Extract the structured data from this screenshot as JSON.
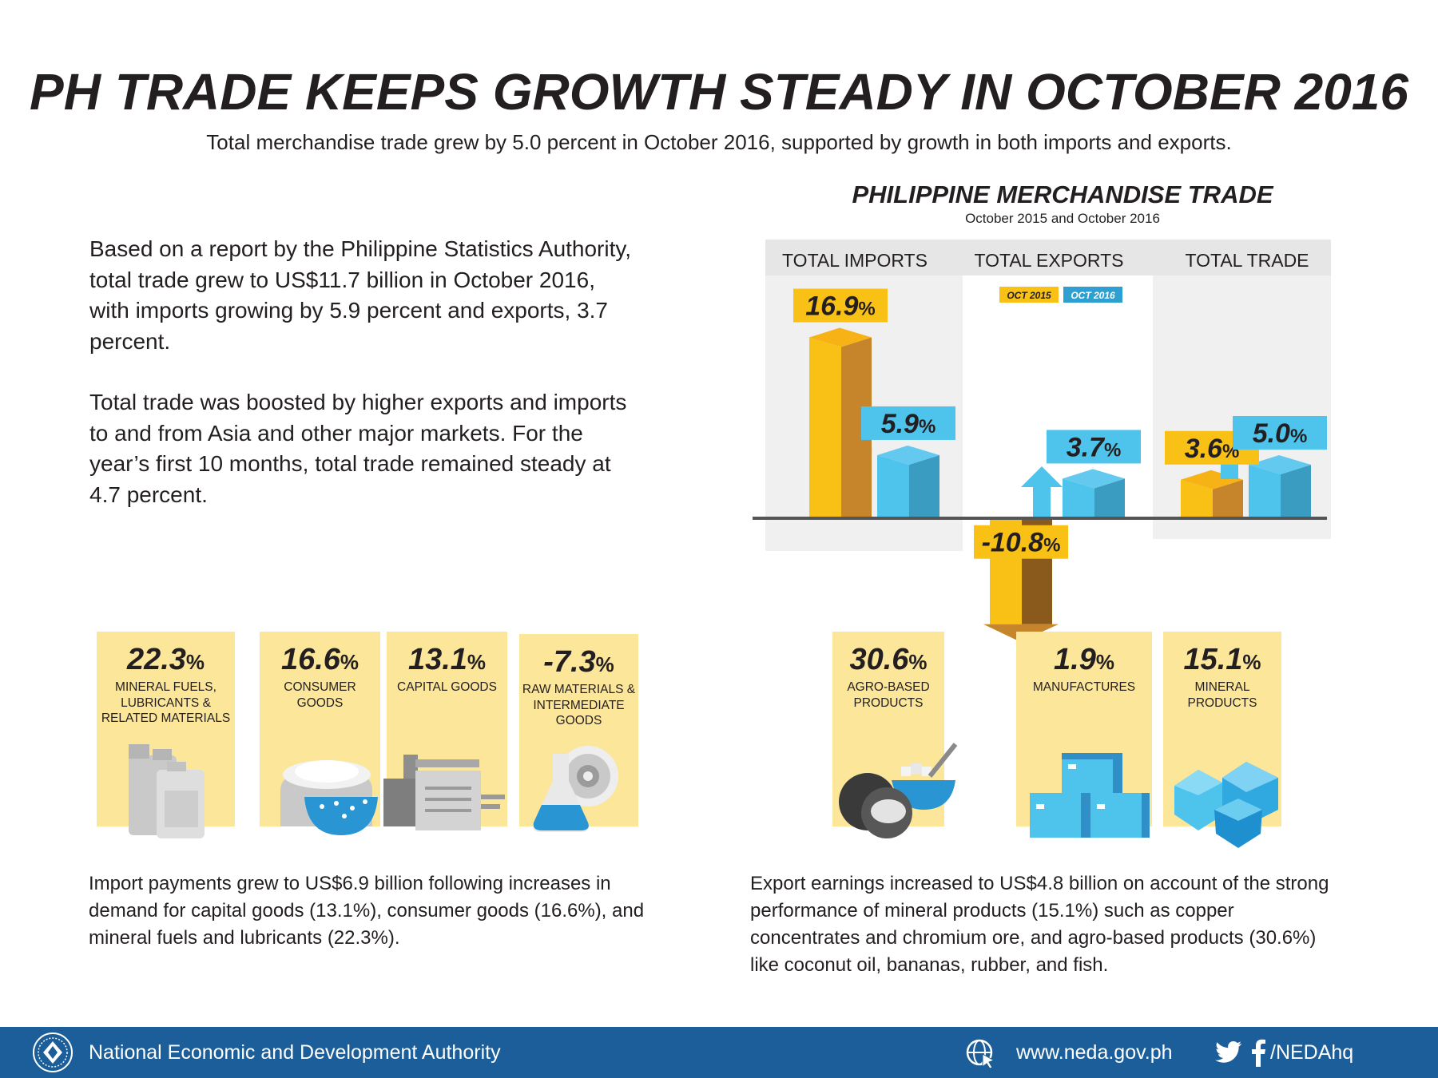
{
  "header": {
    "title": "PH TRADE KEEPS GROWTH STEADY IN OCTOBER 2016",
    "subtitle": "Total merchandise trade grew by 5.0 percent in October 2016, supported by growth in both imports and exports."
  },
  "intro": {
    "paragraph1": "Based on a report by the Philippine Statistics Authority, total trade grew to US$11.7 billion in October 2016, with imports growing by 5.9 percent and exports, 3.7 percent.",
    "paragraph2": "Total trade was boosted by higher exports and imports to and from Asia and other major markets. For the year’s first 10 months, total trade remained steady at 4.7 percent."
  },
  "chart_data": {
    "type": "bar",
    "title": "PHILIPPINE MERCHANDISE TRADE",
    "subtitle": "October 2015 and October 2016",
    "categories": [
      "TOTAL IMPORTS",
      "TOTAL EXPORTS",
      "TOTAL TRADE"
    ],
    "series": [
      {
        "name": "OCT 2015",
        "values": [
          16.9,
          -10.8,
          3.6
        ],
        "labels": [
          "16.9",
          "-10.8",
          "3.6"
        ],
        "color": "#f9c116"
      },
      {
        "name": "OCT 2016",
        "values": [
          5.9,
          3.7,
          5.0
        ],
        "labels": [
          "5.9",
          "3.7",
          "5.0"
        ],
        "color": "#4ec3ec"
      }
    ],
    "unit": "%",
    "ylim": [
      -17,
      17
    ],
    "legend": "top-center",
    "grid": false
  },
  "imports": {
    "cards": [
      {
        "pct": "22.3",
        "label": "MINERAL FUELS, LUBRICANTS & RELATED MATERIALS",
        "icon": "fuel-containers-icon"
      },
      {
        "pct": "16.6",
        "label": "CONSUMER GOODS",
        "icon": "rice-sack-icon"
      },
      {
        "pct": "13.1",
        "label": "CAPITAL GOODS",
        "icon": "copier-machine-icon"
      },
      {
        "pct": "-7.3",
        "label": "RAW MATERIALS & INTERMEDIATE GOODS",
        "icon": "flask-gear-icon"
      }
    ],
    "summary": "Import payments grew to US$6.9 billion following increases in demand for capital goods (13.1%), consumer goods (16.6%), and mineral fuels and lubricants (22.3%)."
  },
  "exports": {
    "cards": [
      {
        "pct": "30.6",
        "label": "AGRO-BASED PRODUCTS",
        "icon": "coconut-sugar-icon"
      },
      {
        "pct": "1.9",
        "label": "MANUFACTURES",
        "icon": "boxes-icon"
      },
      {
        "pct": "15.1",
        "label": "MINERAL PRODUCTS",
        "icon": "mineral-crystals-icon"
      }
    ],
    "summary": "Export earnings increased to US$4.8 billion on account of the strong performance of mineral products (15.1%) such as copper concentrates and chromium ore, and agro-based products (30.6%) like coconut oil, bananas, rubber, and fish."
  },
  "footer": {
    "org": "National Economic and Development Authority",
    "website": "www.neda.gov.ph",
    "social": "/NEDAhq"
  },
  "pct_sign": "%",
  "colors": {
    "yellow": "#f9c116",
    "yellow_dark": "#c6852a",
    "blue": "#4ec3ec",
    "blue_dark": "#3a9cc0",
    "card_bg": "#fce69a",
    "footer": "#1b5e99"
  }
}
